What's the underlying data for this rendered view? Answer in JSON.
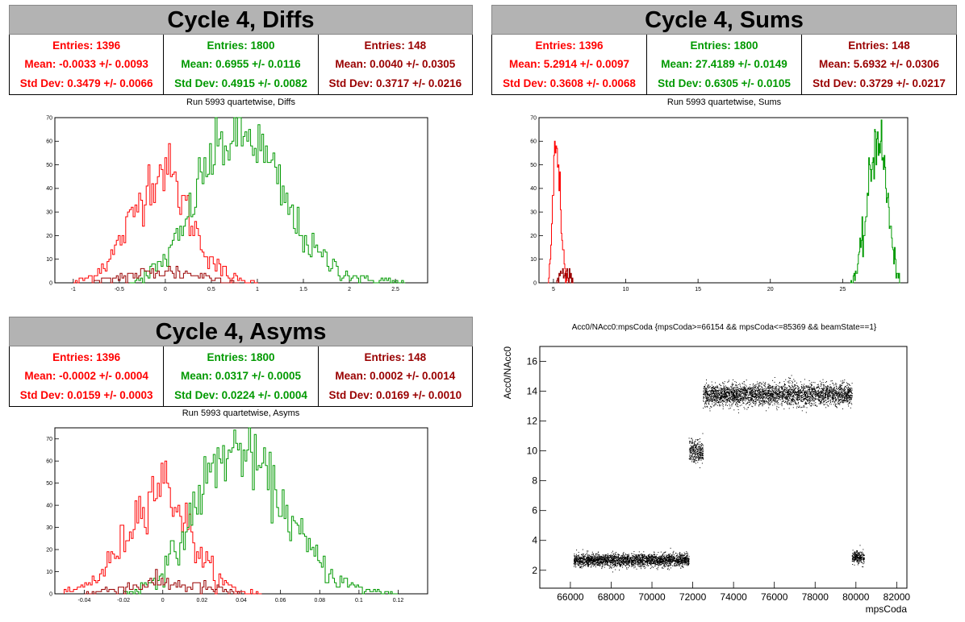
{
  "colors": {
    "s1": "#ff0000",
    "s2": "#009900",
    "s3": "#990000",
    "banner": "#b3b3b3"
  },
  "panels": {
    "diffs": {
      "title": "Cycle 4, Diffs",
      "subtitle": "Run 5993 quartetwise, Diffs",
      "stats": [
        {
          "entries": "Entries: 1396",
          "mean": "Mean: -0.0033 +/- 0.0093",
          "std": "Std Dev: 0.3479 +/- 0.0066"
        },
        {
          "entries": "Entries: 1800",
          "mean": "Mean: 0.6955 +/- 0.0116",
          "std": "Std Dev: 0.4915 +/- 0.0082"
        },
        {
          "entries": "Entries: 148",
          "mean": "Mean: 0.0040 +/- 0.0305",
          "std": "Std Dev: 0.3717 +/- 0.0216"
        }
      ]
    },
    "sums": {
      "title": "Cycle 4, Sums",
      "subtitle": "Run 5993 quartetwise, Sums",
      "stats": [
        {
          "entries": "Entries: 1396",
          "mean": "Mean: 5.2914 +/- 0.0097",
          "std": "Std Dev: 0.3608 +/- 0.0068"
        },
        {
          "entries": "Entries: 1800",
          "mean": "Mean: 27.4189 +/- 0.0149",
          "std": "Std Dev: 0.6305 +/- 0.0105"
        },
        {
          "entries": "Entries: 148",
          "mean": "Mean: 5.6932 +/- 0.0306",
          "std": "Std Dev: 0.3729 +/- 0.0217"
        }
      ]
    },
    "asyms": {
      "title": "Cycle 4, Asyms",
      "subtitle": "Run 5993 quartetwise, Asyms",
      "stats": [
        {
          "entries": "Entries: 1396",
          "mean": "Mean: -0.0002 +/- 0.0004",
          "std": "Std Dev: 0.0159 +/- 0.0003"
        },
        {
          "entries": "Entries: 1800",
          "mean": "Mean: 0.0317 +/- 0.0005",
          "std": "Std Dev: 0.0224 +/- 0.0004"
        },
        {
          "entries": "Entries: 148",
          "mean": "Mean: 0.0002 +/- 0.0014",
          "std": "Std Dev: 0.0169 +/- 0.0010"
        }
      ]
    },
    "scatter": {
      "title": "Acc0/NAcc0:mpsCoda {mpsCoda>=66154 && mpsCoda<=85369 && beamState==1}",
      "xlabel": "mpsCoda",
      "ylabel": "Acc0/NAcc0"
    }
  },
  "chart_data": [
    {
      "type": "histogram",
      "xlim": [
        -1.2,
        2.85
      ],
      "ylim": [
        0,
        70
      ],
      "xticks": [
        -1,
        -0.5,
        0,
        0.5,
        1,
        1.5,
        2,
        2.5
      ],
      "yticks": [
        0,
        10,
        20,
        30,
        40,
        50,
        60,
        70
      ],
      "series": [
        {
          "color": "s1",
          "centers": [
            -1.0,
            -0.8,
            -0.6,
            -0.4,
            -0.2,
            0.0,
            0.2,
            0.4,
            0.6,
            0.8,
            1.0
          ],
          "values": [
            0,
            3,
            10,
            24,
            42,
            50,
            34,
            16,
            5,
            1,
            0
          ]
        },
        {
          "color": "s2",
          "centers": [
            -0.4,
            -0.2,
            0.0,
            0.2,
            0.4,
            0.6,
            0.8,
            1.0,
            1.2,
            1.4,
            1.6,
            1.8,
            2.0,
            2.2,
            2.4,
            2.6
          ],
          "values": [
            0,
            3,
            10,
            22,
            46,
            58,
            62,
            60,
            44,
            26,
            14,
            8,
            3,
            1,
            1,
            0
          ]
        },
        {
          "color": "s3",
          "centers": [
            -0.8,
            -0.4,
            0.0,
            0.4,
            0.8
          ],
          "values": [
            0,
            3,
            5,
            3,
            0
          ]
        }
      ]
    },
    {
      "type": "histogram",
      "xlim": [
        4,
        29.5
      ],
      "ylim": [
        0,
        70
      ],
      "xticks": [
        5,
        10,
        15,
        20,
        25
      ],
      "yticks": [
        0,
        10,
        20,
        30,
        40,
        50,
        60,
        70
      ],
      "series": [
        {
          "color": "s1",
          "centers": [
            4.6,
            4.8,
            5.0,
            5.2,
            5.4,
            5.6,
            5.8,
            6.0
          ],
          "values": [
            0,
            10,
            40,
            62,
            45,
            18,
            5,
            0
          ]
        },
        {
          "color": "s3",
          "centers": [
            5.2,
            5.6,
            6.0,
            6.4
          ],
          "values": [
            0,
            5,
            4,
            0
          ]
        },
        {
          "color": "s2",
          "centers": [
            25.5,
            26.0,
            26.5,
            27.0,
            27.5,
            28.0,
            28.5,
            29.0
          ],
          "values": [
            0,
            5,
            22,
            50,
            66,
            42,
            12,
            0
          ]
        }
      ]
    },
    {
      "type": "histogram",
      "xlim": [
        -0.055,
        0.135
      ],
      "ylim": [
        0,
        75
      ],
      "xticks": [
        -0.04,
        -0.02,
        0,
        0.02,
        0.04,
        0.06,
        0.08,
        0.1,
        0.12
      ],
      "yticks": [
        0,
        10,
        20,
        30,
        40,
        50,
        60,
        70
      ],
      "series": [
        {
          "color": "s1",
          "centers": [
            -0.05,
            -0.04,
            -0.03,
            -0.02,
            -0.01,
            0.0,
            0.01,
            0.02,
            0.03,
            0.04,
            0.05
          ],
          "values": [
            0,
            3,
            10,
            24,
            42,
            52,
            36,
            16,
            5,
            1,
            0
          ]
        },
        {
          "color": "s2",
          "centers": [
            -0.02,
            -0.01,
            0.0,
            0.01,
            0.02,
            0.03,
            0.04,
            0.05,
            0.06,
            0.07,
            0.08,
            0.09,
            0.1,
            0.11,
            0.12
          ],
          "values": [
            0,
            3,
            10,
            24,
            48,
            62,
            66,
            56,
            42,
            26,
            14,
            6,
            2,
            1,
            0
          ]
        },
        {
          "color": "s3",
          "centers": [
            -0.04,
            -0.02,
            0.0,
            0.02,
            0.04
          ],
          "values": [
            0,
            3,
            5,
            3,
            0
          ]
        }
      ]
    },
    {
      "type": "scatter",
      "xlim": [
        64500,
        82500
      ],
      "ylim": [
        0.8,
        17
      ],
      "xticks": [
        66000,
        68000,
        70000,
        72000,
        74000,
        76000,
        78000,
        80000,
        82000
      ],
      "yticks": [
        2,
        4,
        6,
        8,
        10,
        12,
        14,
        16
      ],
      "clusters": [
        {
          "x": [
            66154,
            71800
          ],
          "y_center": 2.7,
          "y_spread": 0.35
        },
        {
          "x": [
            71800,
            72500
          ],
          "y_center": 10.0,
          "y_spread": 0.6
        },
        {
          "x": [
            72500,
            79800
          ],
          "y_center": 13.8,
          "y_spread": 0.6
        },
        {
          "x": [
            79800,
            80400
          ],
          "y_center": 2.9,
          "y_spread": 0.35
        }
      ]
    }
  ]
}
